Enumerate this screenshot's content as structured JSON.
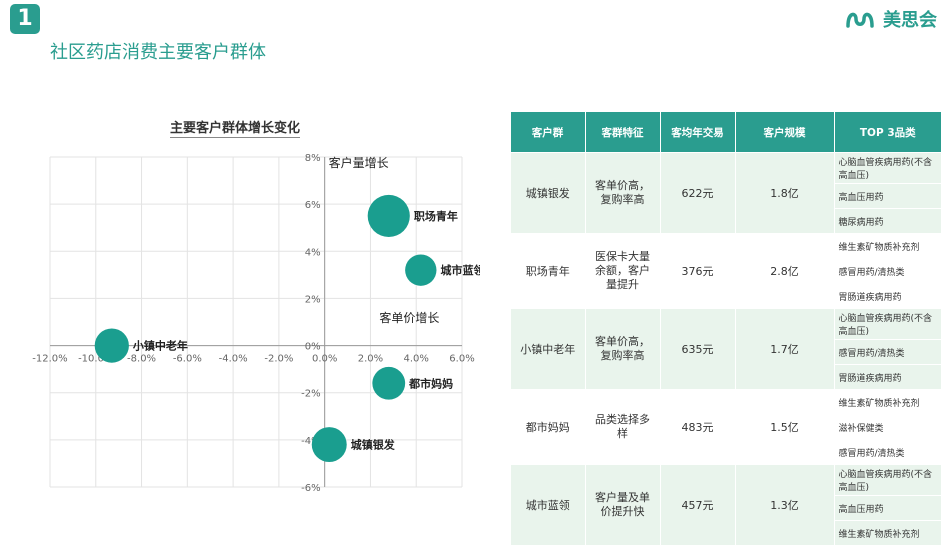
{
  "header": {
    "badge": "1",
    "title": "社区药店消费主要客户群体",
    "logo_text": "美思会"
  },
  "chart_data": {
    "type": "scatter",
    "title": "主要客户群体增长变化",
    "x_ticks": [
      "-12.0%",
      "-10.0%",
      "-8.0%",
      "-6.0%",
      "-4.0%",
      "-2.0%",
      "0.0%",
      "2.0%",
      "4.0%",
      "6.0%"
    ],
    "y_ticks": [
      "8%",
      "6%",
      "4%",
      "2%",
      "0%",
      "-2%",
      "-4%",
      "-6%"
    ],
    "xlim": [
      -12,
      6
    ],
    "ylim": [
      -6,
      8
    ],
    "x_axis_label": "客单价增长",
    "y_axis_label": "客户量增长",
    "points": [
      {
        "name": "职场青年",
        "x": 2.8,
        "y": 5.5,
        "size": 2.8
      },
      {
        "name": "城市蓝领",
        "x": 4.2,
        "y": 3.2,
        "size": 1.3
      },
      {
        "name": "小镇中老年",
        "x": -9.3,
        "y": 0.0,
        "size": 1.7
      },
      {
        "name": "都市妈妈",
        "x": 2.8,
        "y": -1.6,
        "size": 1.5
      },
      {
        "name": "城镇银发",
        "x": 0.2,
        "y": -4.2,
        "size": 1.8
      }
    ],
    "color": "#1a9e8f"
  },
  "table": {
    "headers": [
      "客户群",
      "客群特征",
      "客均年交易",
      "客户规模",
      "TOP 3品类"
    ],
    "rows": [
      {
        "group": "城镇银发",
        "feature": "客单价高，复购率高",
        "spend": "622元",
        "scale": "1.8亿",
        "top3": [
          "心脑血管疾病用药(不含高血压)",
          "高血压用药",
          "糖尿病用药"
        ]
      },
      {
        "group": "职场青年",
        "feature": "医保卡大量余额，客户量提升",
        "spend": "376元",
        "scale": "2.8亿",
        "top3": [
          "维生素矿物质补充剂",
          "感冒用药/清热类",
          "胃肠道疾病用药"
        ]
      },
      {
        "group": "小镇中老年",
        "feature": "客单价高，复购率高",
        "spend": "635元",
        "scale": "1.7亿",
        "top3": [
          "心脑血管疾病用药(不含高血压)",
          "感冒用药/清热类",
          "胃肠道疾病用药"
        ]
      },
      {
        "group": "都市妈妈",
        "feature": "品类选择多样",
        "spend": "483元",
        "scale": "1.5亿",
        "top3": [
          "维生素矿物质补充剂",
          "滋补保健类",
          "感冒用药/清热类"
        ]
      },
      {
        "group": "城市蓝领",
        "feature": "客户量及单价提升快",
        "spend": "457元",
        "scale": "1.3亿",
        "top3": [
          "心脑血管疾病用药(不含高血压)",
          "高血压用药",
          "维生素矿物质补充剂"
        ]
      }
    ]
  }
}
